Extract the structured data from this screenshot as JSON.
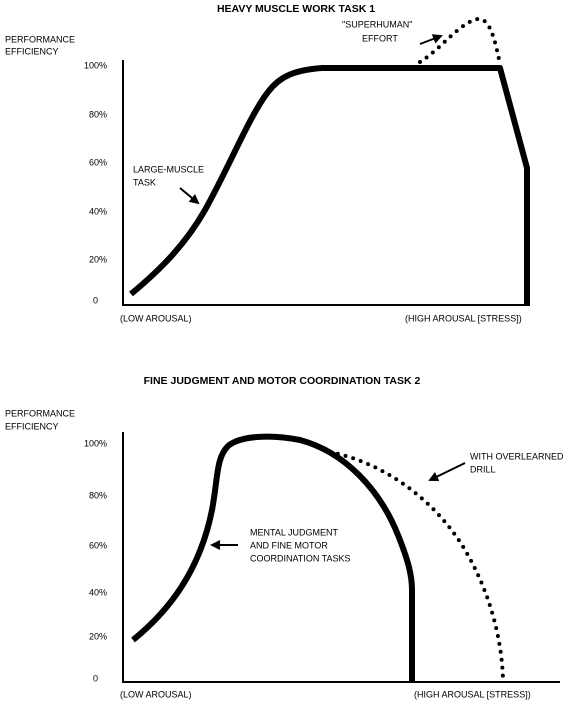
{
  "panels": [
    {
      "title": "HEAVY MUSCLE WORK TASK 1",
      "y_label": [
        "PERFORMANCE",
        "EFFICIENCY"
      ],
      "y_ticks": [
        "100%",
        "80%",
        "60%",
        "40%",
        "20%",
        "0"
      ],
      "x_low": "(LOW AROUSAL)",
      "x_high": "(HIGH AROUSAL [STRESS])",
      "annotations": [
        [
          "LARGE-MUSCLE",
          "TASK"
        ],
        [
          "\"SUPERHUMAN\"",
          "EFFORT"
        ]
      ]
    },
    {
      "title": "FINE JUDGMENT AND MOTOR COORDINATION TASK 2",
      "y_label": [
        "PERFORMANCE",
        "EFFICIENCY"
      ],
      "y_ticks": [
        "100%",
        "80%",
        "60%",
        "40%",
        "20%",
        "0"
      ],
      "x_low": "(LOW AROUSAL)",
      "x_high": "(HIGH AROUSAL [STRESS])",
      "annotations": [
        [
          "MENTAL JUDGMENT",
          "AND FINE MOTOR",
          "COORDINATION TASKS"
        ],
        [
          "WITH OVERLEARNED",
          "DRILL"
        ]
      ]
    }
  ]
}
